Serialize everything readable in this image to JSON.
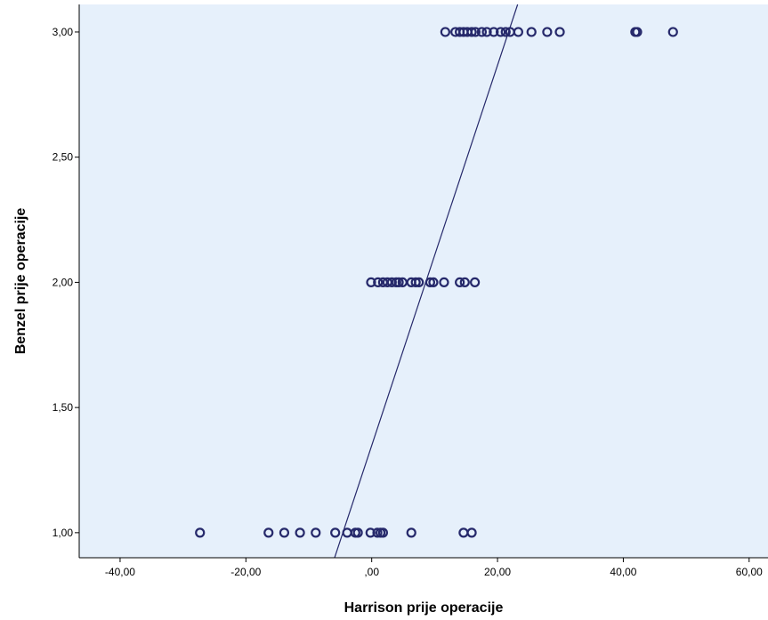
{
  "chart_data": {
    "type": "scatter",
    "title": "",
    "xlabel": "Harrison prije operacije",
    "ylabel": "Benzel prije operacije",
    "xlim": [
      -46.5,
      63
    ],
    "ylim": [
      0.9,
      3.11
    ],
    "x_ticks": [
      -40,
      -20,
      0,
      20,
      40,
      60
    ],
    "x_tick_labels": [
      "-40,00",
      "-20,00",
      ",00",
      "20,00",
      "40,00",
      "60,00"
    ],
    "y_ticks": [
      1,
      1.5,
      2,
      2.5,
      3
    ],
    "y_tick_labels": [
      "1,00",
      "1,50",
      "2,00",
      "2,50",
      "3,00"
    ],
    "grid": false,
    "legend": "none",
    "colors": {
      "plot_background": "#e6f0fb",
      "marker": "#26296b",
      "fit_line": "#26296b",
      "axis": "#000000"
    },
    "fit_line": {
      "x": [
        -5.9,
        23.2
      ],
      "y": [
        0.9,
        3.11
      ]
    },
    "series": [
      {
        "marker": "circle-open",
        "points": [
          {
            "x": -27.3,
            "y": 1
          },
          {
            "x": -16.4,
            "y": 1
          },
          {
            "x": -13.9,
            "y": 1
          },
          {
            "x": -11.4,
            "y": 1
          },
          {
            "x": -8.9,
            "y": 1
          },
          {
            "x": -5.8,
            "y": 1
          },
          {
            "x": -3.9,
            "y": 1
          },
          {
            "x": -2.6,
            "y": 1
          },
          {
            "x": -2.2,
            "y": 1
          },
          {
            "x": -0.2,
            "y": 1
          },
          {
            "x": 0.9,
            "y": 1
          },
          {
            "x": 1.4,
            "y": 1
          },
          {
            "x": 1.8,
            "y": 1
          },
          {
            "x": 6.3,
            "y": 1
          },
          {
            "x": 14.6,
            "y": 1
          },
          {
            "x": 15.9,
            "y": 1
          },
          {
            "x": -0.1,
            "y": 2
          },
          {
            "x": 1.0,
            "y": 2
          },
          {
            "x": 1.8,
            "y": 2
          },
          {
            "x": 2.5,
            "y": 2
          },
          {
            "x": 3.2,
            "y": 2
          },
          {
            "x": 3.9,
            "y": 2
          },
          {
            "x": 4.3,
            "y": 2
          },
          {
            "x": 4.9,
            "y": 2
          },
          {
            "x": 6.3,
            "y": 2
          },
          {
            "x": 7.0,
            "y": 2
          },
          {
            "x": 7.5,
            "y": 2
          },
          {
            "x": 9.3,
            "y": 2
          },
          {
            "x": 9.8,
            "y": 2
          },
          {
            "x": 11.5,
            "y": 2
          },
          {
            "x": 14.0,
            "y": 2
          },
          {
            "x": 14.8,
            "y": 2
          },
          {
            "x": 16.4,
            "y": 2
          },
          {
            "x": 11.7,
            "y": 3
          },
          {
            "x": 13.3,
            "y": 3
          },
          {
            "x": 14.0,
            "y": 3
          },
          {
            "x": 14.6,
            "y": 3
          },
          {
            "x": 15.2,
            "y": 3
          },
          {
            "x": 15.9,
            "y": 3
          },
          {
            "x": 16.5,
            "y": 3
          },
          {
            "x": 17.5,
            "y": 3
          },
          {
            "x": 18.3,
            "y": 3
          },
          {
            "x": 19.4,
            "y": 3
          },
          {
            "x": 20.5,
            "y": 3
          },
          {
            "x": 21.3,
            "y": 3
          },
          {
            "x": 22.0,
            "y": 3
          },
          {
            "x": 23.3,
            "y": 3
          },
          {
            "x": 25.4,
            "y": 3
          },
          {
            "x": 27.9,
            "y": 3
          },
          {
            "x": 29.9,
            "y": 3
          },
          {
            "x": 41.9,
            "y": 3
          },
          {
            "x": 42.2,
            "y": 3
          },
          {
            "x": 47.9,
            "y": 3
          }
        ]
      }
    ]
  }
}
